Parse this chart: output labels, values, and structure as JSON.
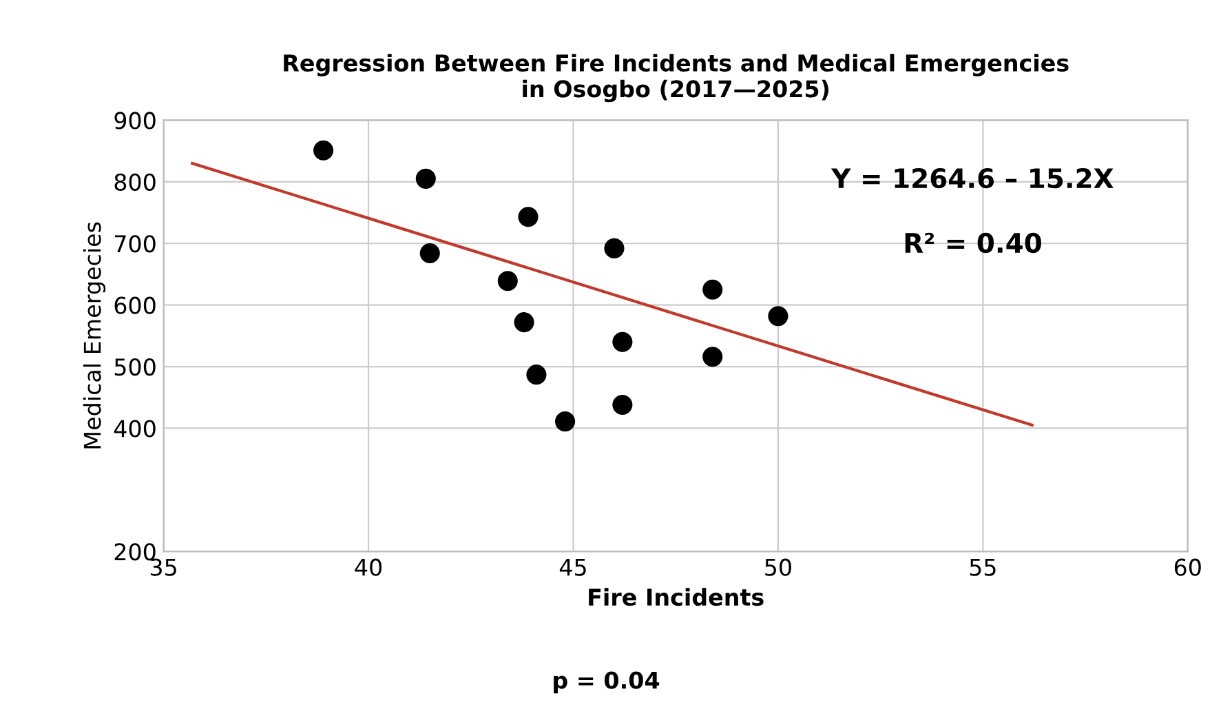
{
  "chart_data": {
    "type": "scatter",
    "title": "Regression Between Fire Incidents and Medical Emergencies\nin Osogbo (2017—2025)",
    "xlabel": "Fire Incidents",
    "ylabel": "Medical Emergecies",
    "xlim": [
      35,
      60
    ],
    "xticks": [
      35,
      40,
      45,
      50,
      55,
      60
    ],
    "ylim": [
      200,
      900
    ],
    "yticks": [
      200,
      400,
      500,
      600,
      700,
      800,
      900
    ],
    "grid": true,
    "marker": "circle",
    "series": [
      {
        "color": "#000000",
        "x": [
          38.9,
          41.4,
          43.9,
          41.5,
          46.0,
          43.4,
          48.4,
          50.0,
          43.8,
          46.2,
          48.4,
          44.1,
          46.2,
          44.8
        ],
        "values": [
          851,
          805,
          743,
          684,
          692,
          639,
          625,
          582,
          572,
          540,
          516,
          487,
          438,
          411
        ]
      },
      {
        "type": "line",
        "color": "#c0392b",
        "marker": "none",
        "x": [
          35.7,
          56.2
        ],
        "values": [
          830,
          405
        ]
      }
    ],
    "annotations": [
      "Y = 1264.6 – 15.2X",
      "R² = 0.40",
      "p = 0.04"
    ]
  }
}
